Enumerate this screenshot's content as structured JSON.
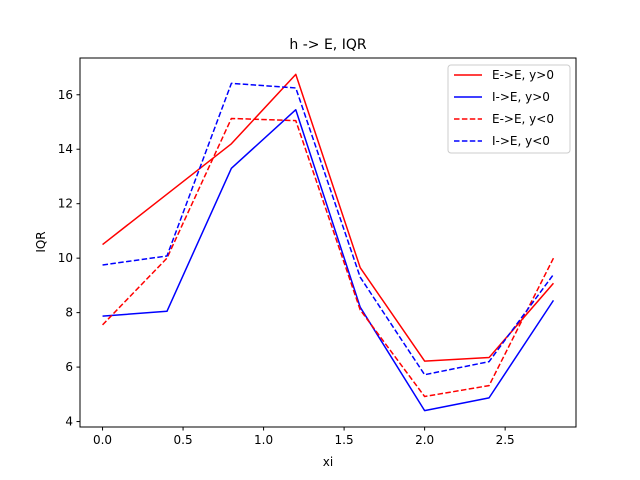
{
  "chart_data": {
    "type": "line",
    "title": "h -> E, IQR",
    "xlabel": "xi",
    "ylabel": "IQR",
    "xlim": [
      -0.14,
      2.94
    ],
    "ylim": [
      3.8,
      17.35
    ],
    "xticks": [
      0.0,
      0.5,
      1.0,
      1.5,
      2.0,
      2.5
    ],
    "xtick_labels": [
      "0.0",
      "0.5",
      "1.0",
      "1.5",
      "2.0",
      "2.5"
    ],
    "yticks": [
      4,
      6,
      8,
      10,
      12,
      14,
      16
    ],
    "ytick_labels": [
      "4",
      "6",
      "8",
      "10",
      "12",
      "14",
      "16"
    ],
    "grid": false,
    "legend_position": "top-right",
    "x": [
      0.0,
      0.4,
      0.8,
      1.2,
      1.6,
      2.0,
      2.4,
      2.8
    ],
    "series": [
      {
        "name": "E->E, y>0",
        "color": "#ff0000",
        "dash": "solid",
        "values": [
          10.5,
          12.35,
          14.2,
          16.75,
          9.65,
          6.22,
          6.35,
          9.08
        ]
      },
      {
        "name": "I->E, y>0",
        "color": "#0000ff",
        "dash": "solid",
        "values": [
          7.87,
          8.05,
          13.3,
          15.45,
          8.2,
          4.4,
          4.87,
          8.45
        ]
      },
      {
        "name": "E->E, y<0",
        "color": "#ff0000",
        "dash": "dashed",
        "values": [
          7.55,
          10.0,
          15.13,
          15.05,
          8.1,
          4.92,
          5.32,
          10.0
        ]
      },
      {
        "name": "I->E, y<0",
        "color": "#0000ff",
        "dash": "dashed",
        "values": [
          9.75,
          10.08,
          16.42,
          16.25,
          9.3,
          5.72,
          6.2,
          9.4
        ]
      }
    ]
  }
}
